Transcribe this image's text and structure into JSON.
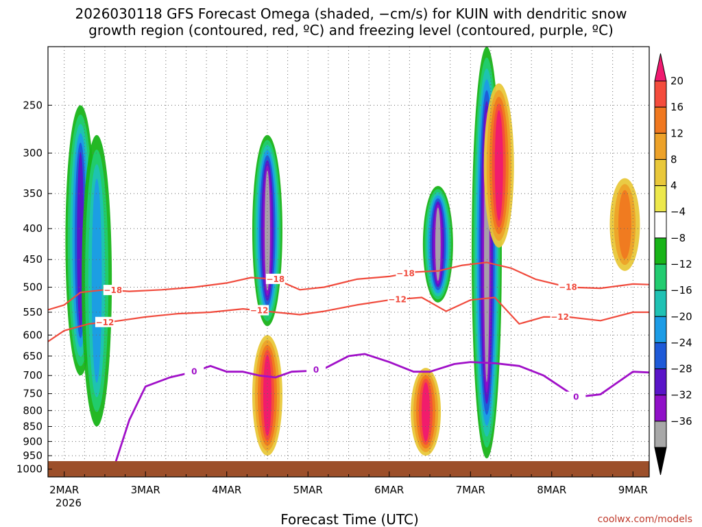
{
  "title_line1": "2026030118 GFS Forecast Omega (shaded, −cm/s) for KUIN with dendritic snow",
  "title_line2": "growth region (contoured, red, ºC) and freezing level (contoured, purple, ºC)",
  "xlabel": "Forecast Time (UTC)",
  "credit": "coolwx.com/models",
  "chart_data": {
    "type": "heatmap",
    "title": "2026030118 GFS Forecast Omega (shaded, −cm/s) for KUIN with dendritic snow growth region (contoured, red, ºC) and freezing level (contoured, purple, ºC)",
    "xlabel": "Forecast Time (UTC)",
    "ylabel": "",
    "x_range_days": [
      1.8,
      9.2
    ],
    "y_range_hpa": [
      200,
      1030
    ],
    "xticks": [
      {
        "label": "2MAR",
        "day": 2
      },
      {
        "label": "3MAR",
        "day": 3
      },
      {
        "label": "4MAR",
        "day": 4
      },
      {
        "label": "5MAR",
        "day": 5
      },
      {
        "label": "6MAR",
        "day": 6
      },
      {
        "label": "7MAR",
        "day": 7
      },
      {
        "label": "8MAR",
        "day": 8
      },
      {
        "label": "9MAR",
        "day": 9
      }
    ],
    "xtick_year": "2026",
    "yticks": [
      "250",
      "300",
      "350",
      "400",
      "450",
      "500",
      "550",
      "600",
      "650",
      "700",
      "750",
      "800",
      "850",
      "900",
      "950",
      "1000"
    ],
    "colorbar": {
      "labels": [
        "20",
        "16",
        "12",
        "8",
        "4",
        "−4",
        "−8",
        "−12",
        "−16",
        "−20",
        "−24",
        "−28",
        "−32",
        "−36"
      ],
      "colors": [
        "#f0196f",
        "#f44c3c",
        "#f07820",
        "#eda229",
        "#e9c83a",
        "#ede84c",
        "#ffffff",
        "#18b418",
        "#22cc70",
        "#1fc2b4",
        "#1c9ce6",
        "#1e5ad8",
        "#5a14c8",
        "#9010c8",
        "#a8a8a8",
        "#000000"
      ]
    },
    "omega_features": [
      {
        "day": 2.2,
        "p_top": 250,
        "p_bot": 700,
        "peak": -26
      },
      {
        "day": 2.4,
        "p_top": 280,
        "p_bot": 850,
        "peak": -18
      },
      {
        "day": 4.5,
        "p_top": 280,
        "p_bot": 580,
        "peak": -36
      },
      {
        "day": 4.5,
        "p_top": 600,
        "p_bot": 950,
        "peak": 22
      },
      {
        "day": 6.6,
        "p_top": 340,
        "p_bot": 530,
        "peak": -36
      },
      {
        "day": 6.45,
        "p_top": 680,
        "p_bot": 950,
        "peak": 22
      },
      {
        "day": 7.2,
        "p_top": 200,
        "p_bot": 960,
        "peak": -36
      },
      {
        "day": 7.35,
        "p_top": 230,
        "p_bot": 430,
        "peak": 24
      },
      {
        "day": 8.9,
        "p_top": 330,
        "p_bot": 470,
        "peak": 14
      }
    ],
    "series": [
      {
        "name": "-18",
        "color": "#f04a3c",
        "x": [
          1.8,
          2.0,
          2.2,
          2.5,
          2.8,
          3.2,
          3.6,
          4.0,
          4.3,
          4.6,
          4.9,
          5.2,
          5.6,
          6.0,
          6.3,
          6.6,
          6.9,
          7.2,
          7.5,
          7.8,
          8.2,
          8.6,
          9.0,
          9.2
        ],
        "y": [
          545,
          535,
          510,
          505,
          508,
          505,
          500,
          492,
          482,
          485,
          505,
          500,
          485,
          480,
          472,
          470,
          460,
          455,
          465,
          485,
          500,
          502,
          494,
          495
        ],
        "label": "−18",
        "label_positions": [
          2.6,
          4.6,
          6.2,
          8.2
        ]
      },
      {
        "name": "-12",
        "color": "#f04a3c",
        "x": [
          1.8,
          2.0,
          2.3,
          2.6,
          3.0,
          3.4,
          3.8,
          4.2,
          4.6,
          4.9,
          5.2,
          5.6,
          6.0,
          6.4,
          6.7,
          7.0,
          7.3,
          7.6,
          7.9,
          8.2,
          8.6,
          9.0,
          9.2
        ],
        "y": [
          615,
          590,
          575,
          570,
          560,
          553,
          550,
          543,
          550,
          555,
          548,
          535,
          525,
          520,
          548,
          525,
          520,
          575,
          560,
          560,
          568,
          550,
          550
        ],
        "label": "−12",
        "label_positions": [
          2.5,
          4.4,
          6.1,
          8.1
        ]
      },
      {
        "name": "0",
        "color": "#a010c8",
        "x": [
          1.8,
          2.6,
          2.8,
          3.0,
          3.3,
          3.6,
          3.8,
          4.0,
          4.2,
          4.4,
          4.6,
          4.8,
          5.0,
          5.2,
          5.5,
          5.7,
          6.0,
          6.3,
          6.5,
          6.8,
          7.0,
          7.3,
          7.6,
          7.9,
          8.3,
          8.6,
          9.0,
          9.2
        ],
        "y": [
          1010,
          1005,
          830,
          730,
          705,
          690,
          675,
          690,
          690,
          700,
          705,
          690,
          688,
          682,
          650,
          645,
          665,
          690,
          690,
          670,
          665,
          668,
          675,
          700,
          760,
          752,
          690,
          692
        ],
        "label": "0",
        "label_positions": [
          3.6,
          5.1,
          8.3
        ]
      }
    ]
  }
}
